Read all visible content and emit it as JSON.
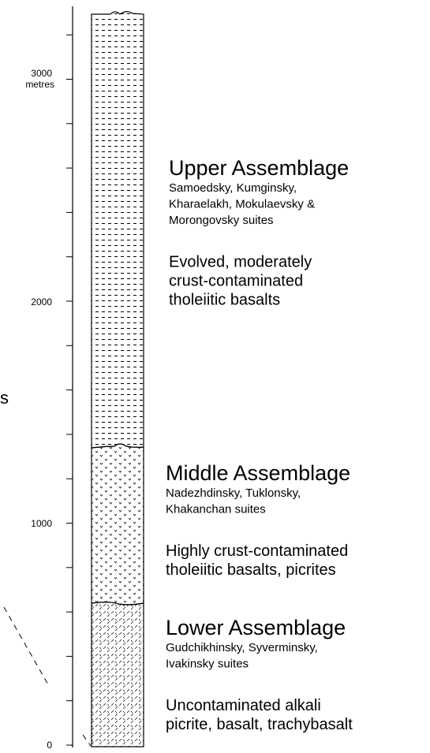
{
  "axis": {
    "labels": [
      "0",
      "1000",
      "2000",
      "3000"
    ],
    "unit": "metres"
  },
  "edge_text": "s",
  "assemblages": [
    {
      "title": "Upper Assemblage",
      "suites": [
        "Samoedsky, Kumginsky,",
        "Kharaelakh, Mokulaevsky &",
        "Morongovsky suites"
      ],
      "description": [
        "Evolved, moderately",
        "crust-contaminated",
        "tholeiitic basalts"
      ]
    },
    {
      "title": "Middle Assemblage",
      "suites": [
        "Nadezhdinsky, Tuklonsky,",
        "Khakanchan suites"
      ],
      "description": [
        "Highly crust-contaminated",
        "tholeiitic basalts, picrites"
      ]
    },
    {
      "title": "Lower Assemblage",
      "suites": [
        "Gudchikhinsky, Syverminsky,",
        "Ivakinsky suites"
      ],
      "description": [
        "Uncontaminated alkali",
        "picrite, basalt, trachybasalt"
      ]
    }
  ]
}
